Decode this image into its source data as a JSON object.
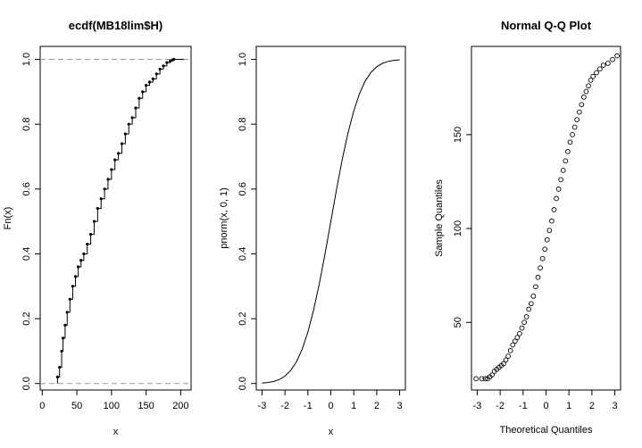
{
  "chart_data": [
    {
      "type": "scatter",
      "subtype": "step-ecdf",
      "title": "ecdf(MB18lim$H)",
      "xlabel": "x",
      "ylabel": "Fn(x)",
      "xlim": [
        -3,
        215
      ],
      "ylim": [
        -0.02,
        1.04
      ],
      "xticks": [
        0,
        50,
        100,
        150,
        200
      ],
      "yticks": [
        0.0,
        0.2,
        0.4,
        0.6,
        0.8,
        1.0
      ],
      "xtick_labels": [
        "0",
        "50",
        "100",
        "150",
        "200"
      ],
      "ytick_labels": [
        "0.0",
        "0.2",
        "0.4",
        "0.6",
        "0.8",
        "1.0"
      ],
      "reference_lines": [
        0,
        1
      ],
      "x": [
        22,
        25,
        28,
        30,
        33,
        36,
        40,
        44,
        48,
        52,
        56,
        60,
        65,
        70,
        75,
        80,
        85,
        90,
        95,
        100,
        105,
        110,
        115,
        120,
        125,
        130,
        135,
        140,
        145,
        150,
        155,
        160,
        165,
        170,
        175,
        180,
        185,
        188,
        190
      ],
      "y": [
        0.02,
        0.05,
        0.1,
        0.14,
        0.18,
        0.22,
        0.26,
        0.3,
        0.33,
        0.36,
        0.38,
        0.4,
        0.43,
        0.46,
        0.5,
        0.54,
        0.57,
        0.6,
        0.63,
        0.66,
        0.69,
        0.71,
        0.74,
        0.77,
        0.8,
        0.82,
        0.85,
        0.88,
        0.9,
        0.92,
        0.93,
        0.94,
        0.955,
        0.97,
        0.98,
        0.99,
        0.995,
        0.998,
        1.0
      ]
    },
    {
      "type": "line",
      "title": "",
      "xlabel": "x",
      "ylabel": "pnorm(x, 0, 1)",
      "xlim": [
        -3.25,
        3.25
      ],
      "ylim": [
        -0.02,
        1.04
      ],
      "xticks": [
        -3,
        -2,
        -1,
        0,
        1,
        2,
        3
      ],
      "yticks": [
        0.0,
        0.2,
        0.4,
        0.6,
        0.8,
        1.0
      ],
      "xtick_labels": [
        "-3",
        "-2",
        "-1",
        "0",
        "1",
        "2",
        "3"
      ],
      "ytick_labels": [
        "0.0",
        "0.2",
        "0.4",
        "0.6",
        "0.8",
        "1.0"
      ],
      "x": [
        -3,
        -2.75,
        -2.5,
        -2.25,
        -2,
        -1.75,
        -1.5,
        -1.25,
        -1,
        -0.75,
        -0.5,
        -0.25,
        0,
        0.25,
        0.5,
        0.75,
        1,
        1.25,
        1.5,
        1.75,
        2,
        2.25,
        2.5,
        2.75,
        3
      ],
      "y": [
        0.0013,
        0.003,
        0.0062,
        0.0122,
        0.0228,
        0.0401,
        0.0668,
        0.1056,
        0.1587,
        0.2266,
        0.3085,
        0.4013,
        0.5,
        0.5987,
        0.6915,
        0.7734,
        0.8413,
        0.8944,
        0.9332,
        0.9599,
        0.9772,
        0.9878,
        0.9938,
        0.997,
        0.9987
      ]
    },
    {
      "type": "scatter",
      "title": "Normal Q-Q Plot",
      "xlabel": "Theoretical Quantiles",
      "ylabel": "Sample Quantiles",
      "xlim": [
        -3.25,
        3.25
      ],
      "ylim": [
        14,
        197
      ],
      "xticks": [
        -3,
        -2,
        -1,
        0,
        1,
        2,
        3
      ],
      "yticks": [
        50,
        100,
        150
      ],
      "xtick_labels": [
        "-3",
        "-2",
        "-1",
        "0",
        "1",
        "2",
        "3"
      ],
      "ytick_labels": [
        "50",
        "100",
        "150"
      ],
      "x": [
        -3.05,
        -2.8,
        -2.65,
        -2.55,
        -2.45,
        -2.35,
        -2.25,
        -2.15,
        -2.05,
        -1.95,
        -1.85,
        -1.75,
        -1.65,
        -1.55,
        -1.45,
        -1.35,
        -1.25,
        -1.15,
        -1.05,
        -0.95,
        -0.85,
        -0.75,
        -0.65,
        -0.55,
        -0.45,
        -0.35,
        -0.25,
        -0.15,
        -0.05,
        0.05,
        0.15,
        0.25,
        0.35,
        0.45,
        0.55,
        0.65,
        0.75,
        0.85,
        0.95,
        1.05,
        1.15,
        1.25,
        1.35,
        1.45,
        1.55,
        1.65,
        1.75,
        1.85,
        1.95,
        2.05,
        2.2,
        2.35,
        2.5,
        2.7,
        2.9,
        3.1
      ],
      "y": [
        20,
        20,
        20,
        20,
        21,
        22,
        24,
        25,
        26,
        27,
        28,
        30,
        32,
        35,
        38,
        40,
        42,
        44,
        47,
        50,
        53,
        57,
        60,
        64,
        69,
        74,
        79,
        84,
        89,
        94,
        99,
        104,
        110,
        116,
        121,
        126,
        131,
        136,
        141,
        146,
        150,
        154,
        158,
        162,
        166,
        170,
        173,
        176,
        179,
        181,
        183,
        185,
        187,
        188,
        190,
        192
      ]
    }
  ]
}
